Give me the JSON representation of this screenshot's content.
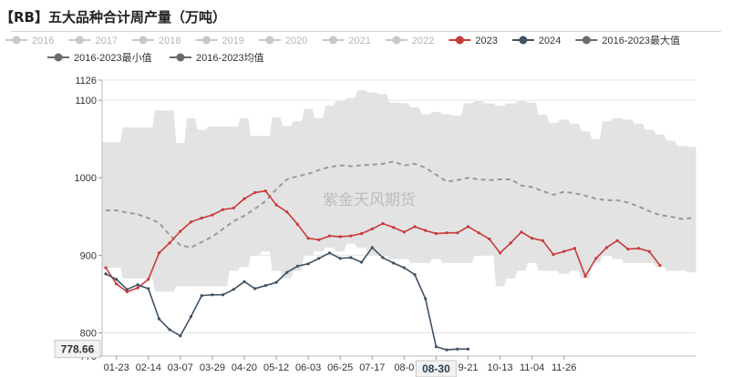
{
  "title": "【RB】五大品种合计周产量（万吨）",
  "watermark": "紫金天风期货",
  "cursor_label_x": "08-30",
  "cursor_label_y": "778.66",
  "colors": {
    "band": "#e3e3e3",
    "line_2023": "#c93a3a",
    "line_2024": "#3f5366",
    "avg": "#9a9a9a",
    "legend_off": "#c8c8c8",
    "legend_text_off": "#b5b5b5"
  },
  "legend": [
    {
      "label": "2016",
      "active": false,
      "icon": "circle-marker-icon"
    },
    {
      "label": "2017",
      "active": false,
      "icon": "circle-marker-icon"
    },
    {
      "label": "2018",
      "active": false,
      "icon": "circle-marker-icon"
    },
    {
      "label": "2019",
      "active": false,
      "icon": "circle-marker-icon"
    },
    {
      "label": "2020",
      "active": false,
      "icon": "circle-marker-icon"
    },
    {
      "label": "2021",
      "active": false,
      "icon": "circle-marker-icon"
    },
    {
      "label": "2022",
      "active": false,
      "icon": "circle-marker-icon"
    },
    {
      "label": "2023",
      "active": true,
      "color": "#c93a3a",
      "icon": "circle-marker-icon"
    },
    {
      "label": "2024",
      "active": true,
      "color": "#3f5366",
      "icon": "circle-marker-icon"
    },
    {
      "label": "2016-2023最大值",
      "active": true,
      "color": "#6b6b6b",
      "icon": "circle-marker-icon"
    },
    {
      "label": "2016-2023最小值",
      "active": true,
      "color": "#6b6b6b",
      "icon": "circle-marker-icon"
    },
    {
      "label": "2016-2023均值",
      "active": true,
      "color": "#6b6b6b",
      "icon": "circle-marker-icon"
    }
  ],
  "chart_data": {
    "type": "line",
    "title": "【RB】五大品种合计周产量（万吨）",
    "ylim": [
      770,
      1126
    ],
    "y_ticks": [
      770,
      800,
      900,
      1000,
      1100,
      1126
    ],
    "x_ticks": [
      "01-23",
      "02-14",
      "03-07",
      "03-29",
      "04-20",
      "05-12",
      "06-03",
      "06-25",
      "07-17",
      "08-08",
      "08-30",
      "09-21",
      "10-13",
      "11-04",
      "11-26"
    ],
    "x_tick_labels": [
      "01-23",
      "02-14",
      "03-07",
      "03-29",
      "04-20",
      "05-12",
      "06-03",
      "06-25",
      "07-17",
      "08-0",
      "08-30",
      "9-21",
      "10-13",
      "11-04",
      "11-26"
    ],
    "grid": true,
    "series": [
      {
        "name": "2023",
        "values": [
          884,
          863,
          853,
          858,
          869,
          903,
          916,
          931,
          943,
          948,
          952,
          959,
          961,
          973,
          981,
          983,
          965,
          956,
          940,
          922,
          920,
          925,
          924,
          925,
          928,
          934,
          941,
          936,
          930,
          937,
          932,
          928,
          929,
          929,
          937,
          929,
          921,
          903,
          916,
          930,
          922,
          919,
          901,
          905,
          909,
          873,
          896,
          910,
          919,
          908,
          909,
          905,
          887
        ]
      },
      {
        "name": "2024",
        "values": [
          876,
          869,
          856,
          862,
          857,
          818,
          804,
          796,
          821,
          848,
          849,
          849,
          856,
          866,
          857,
          861,
          865,
          878,
          886,
          889,
          896,
          903,
          896,
          897,
          891,
          910,
          897,
          890,
          884,
          875,
          844,
          782,
          778,
          779,
          779
        ]
      },
      {
        "name": "2016-2023最大值",
        "values": [
          1046,
          1046,
          1065,
          1065,
          1065,
          1087,
          1087,
          1045,
          1077,
          1062,
          1066,
          1066,
          1066,
          1077,
          1054,
          1054,
          1078,
          1067,
          1073,
          1089,
          1077,
          1093,
          1099,
          1103,
          1113,
          1110,
          1108,
          1097,
          1096,
          1091,
          1082,
          1085,
          1082,
          1080,
          1096,
          1099,
          1096,
          1093,
          1096,
          1099,
          1097,
          1081,
          1071,
          1075,
          1070,
          1060,
          1050,
          1073,
          1077,
          1075,
          1070,
          1062,
          1056,
          1048,
          1041,
          1040
        ]
      },
      {
        "name": "2016-2023最小值",
        "values": [
          884,
          884,
          870,
          870,
          870,
          853,
          853,
          860,
          860,
          860,
          860,
          860,
          880,
          885,
          900,
          905,
          880,
          870,
          880,
          900,
          905,
          910,
          905,
          915,
          910,
          900,
          900,
          895,
          895,
          890,
          890,
          895,
          890,
          890,
          890,
          900,
          900,
          860,
          870,
          880,
          890,
          880,
          880,
          876,
          880,
          870,
          890,
          900,
          895,
          890,
          890,
          890,
          885,
          880,
          880,
          878
        ]
      },
      {
        "name": "2016-2023均值",
        "values": [
          958,
          958,
          955,
          953,
          948,
          942,
          926,
          913,
          910,
          917,
          924,
          934,
          944,
          951,
          960,
          970,
          985,
          998,
          1002,
          1005,
          1010,
          1014,
          1016,
          1015,
          1016,
          1017,
          1018,
          1021,
          1016,
          1018,
          1013,
          1004,
          995,
          997,
          1000,
          998,
          997,
          998,
          998,
          990,
          988,
          983,
          978,
          982,
          980,
          977,
          973,
          971,
          971,
          968,
          963,
          957,
          952,
          950,
          947,
          948
        ]
      }
    ]
  }
}
